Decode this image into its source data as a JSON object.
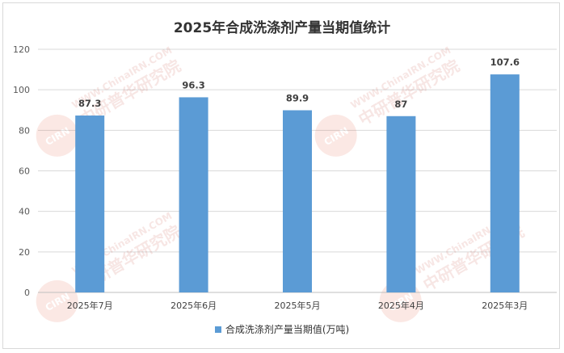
{
  "chart_data": {
    "type": "bar",
    "title": "2025年合成洗涤剂产量当期值统计",
    "categories": [
      "2025年7月",
      "2025年6月",
      "2025年5月",
      "2025年4月",
      "2025年3月"
    ],
    "series": [
      {
        "name": "合成洗涤剂产量当期值(万吨)",
        "values": [
          87.3,
          96.3,
          89.9,
          87,
          107.6
        ],
        "color": "#5b9bd5"
      }
    ],
    "data_labels": [
      "87.3",
      "96.3",
      "89.9",
      "87",
      "107.6"
    ],
    "ylim": [
      0,
      120
    ],
    "yticks": [
      0,
      20,
      40,
      60,
      80,
      100,
      120
    ],
    "xlabel": "",
    "ylabel": "",
    "grid": true,
    "legend": "bottom"
  },
  "watermark": {
    "url_text": "WWW.ChinaIRN.COM",
    "cn_text": "中研普华研究院",
    "badge_text": "CIRN"
  }
}
